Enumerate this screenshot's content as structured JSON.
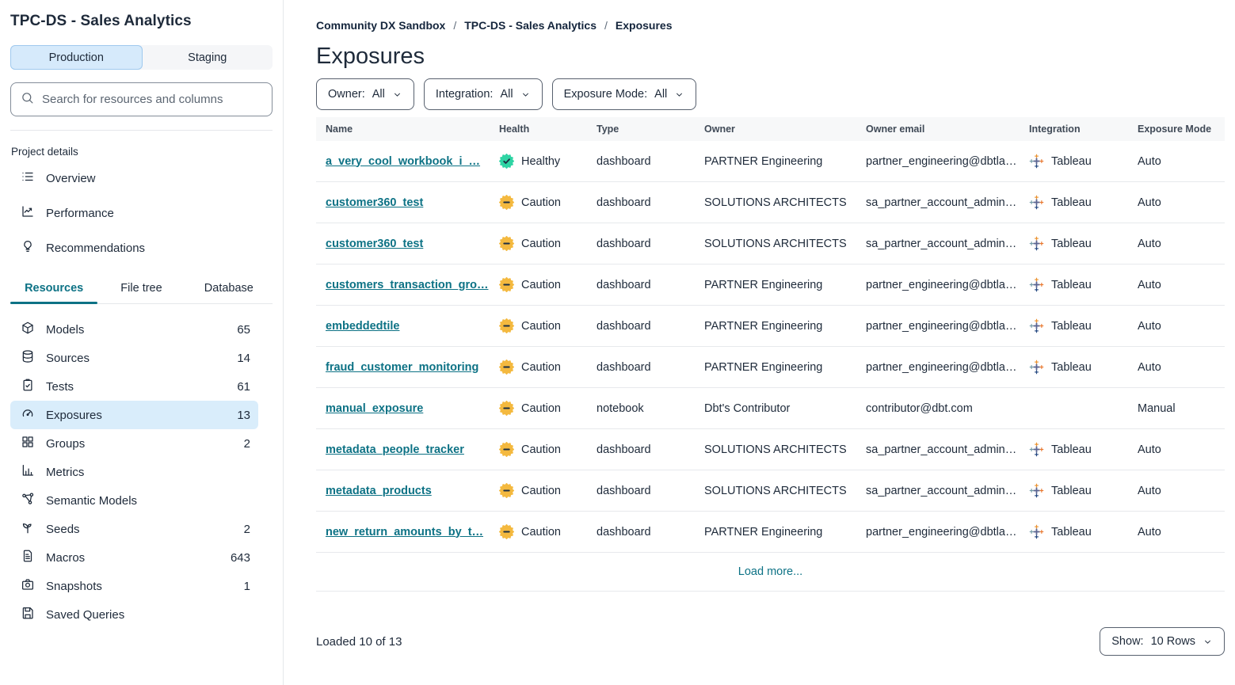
{
  "colors": {
    "accent_teal": "#0d7285",
    "selected_blue": "#d9edfb",
    "production_blue": "#d6eafb",
    "healthy_green": "#2fd4a4",
    "caution_amber": "#f4b93f",
    "badge_glyph": "#1d2f43"
  },
  "sidebar": {
    "project_title": "TPC-DS - Sales Analytics",
    "environment_toggle": {
      "production": "Production",
      "staging": "Staging",
      "active": "Production"
    },
    "search": {
      "placeholder": "Search for resources and columns"
    },
    "project_details_label": "Project details",
    "menu": [
      {
        "label": "Overview",
        "icon": "list"
      },
      {
        "label": "Performance",
        "icon": "trend"
      },
      {
        "label": "Recommendations",
        "icon": "lightbulb"
      }
    ],
    "tabs": [
      {
        "label": "Resources",
        "active": true
      },
      {
        "label": "File tree",
        "active": false
      },
      {
        "label": "Database",
        "active": false
      }
    ],
    "resources": [
      {
        "label": "Models",
        "count": "65",
        "icon": "cube",
        "selected": false
      },
      {
        "label": "Sources",
        "count": "14",
        "icon": "database",
        "selected": false
      },
      {
        "label": "Tests",
        "count": "61",
        "icon": "clipboard",
        "selected": false
      },
      {
        "label": "Exposures",
        "count": "13",
        "icon": "gauge",
        "selected": true
      },
      {
        "label": "Groups",
        "count": "2",
        "icon": "grid",
        "selected": false
      },
      {
        "label": "Metrics",
        "count": "",
        "icon": "chart",
        "selected": false
      },
      {
        "label": "Semantic Models",
        "count": "",
        "icon": "network",
        "selected": false
      },
      {
        "label": "Seeds",
        "count": "2",
        "icon": "seedling",
        "selected": false
      },
      {
        "label": "Macros",
        "count": "643",
        "icon": "file",
        "selected": false
      },
      {
        "label": "Snapshots",
        "count": "1",
        "icon": "camera",
        "selected": false
      },
      {
        "label": "Saved Queries",
        "count": "",
        "icon": "save",
        "selected": false
      }
    ]
  },
  "main": {
    "breadcrumb": [
      {
        "label": "Community DX Sandbox"
      },
      {
        "label": "TPC-DS - Sales Analytics"
      },
      {
        "label": "Exposures"
      }
    ],
    "page_title": "Exposures",
    "filters": [
      {
        "label": "Owner:",
        "value": "All"
      },
      {
        "label": "Integration:",
        "value": "All"
      },
      {
        "label": "Exposure Mode:",
        "value": "All"
      }
    ],
    "table": {
      "columns": [
        "Name",
        "Health",
        "Type",
        "Owner",
        "Owner email",
        "Integration",
        "Exposure Mode"
      ],
      "rows": [
        {
          "name": "a_very_cool_workbook_i_…",
          "health": "Healthy",
          "health_status": "healthy",
          "type": "dashboard",
          "owner": "PARTNER Engineering",
          "owner_email": "partner_engineering@dbtla…",
          "integration": "Tableau",
          "exposure_mode": "Auto"
        },
        {
          "name": "customer360_test",
          "health": "Caution",
          "health_status": "caution",
          "type": "dashboard",
          "owner": "SOLUTIONS ARCHITECTS",
          "owner_email": "sa_partner_account_admin…",
          "integration": "Tableau",
          "exposure_mode": "Auto"
        },
        {
          "name": "customer360_test",
          "health": "Caution",
          "health_status": "caution",
          "type": "dashboard",
          "owner": "SOLUTIONS ARCHITECTS",
          "owner_email": "sa_partner_account_admin…",
          "integration": "Tableau",
          "exposure_mode": "Auto"
        },
        {
          "name": "customers_transaction_gro…",
          "health": "Caution",
          "health_status": "caution",
          "type": "dashboard",
          "owner": "PARTNER Engineering",
          "owner_email": "partner_engineering@dbtla…",
          "integration": "Tableau",
          "exposure_mode": "Auto"
        },
        {
          "name": "embeddedtile",
          "health": "Caution",
          "health_status": "caution",
          "type": "dashboard",
          "owner": "PARTNER Engineering",
          "owner_email": "partner_engineering@dbtla…",
          "integration": "Tableau",
          "exposure_mode": "Auto"
        },
        {
          "name": "fraud_customer_monitoring",
          "health": "Caution",
          "health_status": "caution",
          "type": "dashboard",
          "owner": "PARTNER Engineering",
          "owner_email": "partner_engineering@dbtla…",
          "integration": "Tableau",
          "exposure_mode": "Auto"
        },
        {
          "name": "manual_exposure",
          "health": "Caution",
          "health_status": "caution",
          "type": "notebook",
          "owner": "Dbt's Contributor",
          "owner_email": "contributor@dbt.com",
          "integration": "",
          "exposure_mode": "Manual"
        },
        {
          "name": "metadata_people_tracker",
          "health": "Caution",
          "health_status": "caution",
          "type": "dashboard",
          "owner": "SOLUTIONS ARCHITECTS",
          "owner_email": "sa_partner_account_admin…",
          "integration": "Tableau",
          "exposure_mode": "Auto"
        },
        {
          "name": "metadata_products",
          "health": "Caution",
          "health_status": "caution",
          "type": "dashboard",
          "owner": "SOLUTIONS ARCHITECTS",
          "owner_email": "sa_partner_account_admin…",
          "integration": "Tableau",
          "exposure_mode": "Auto"
        },
        {
          "name": "new_return_amounts_by_t…",
          "health": "Caution",
          "health_status": "caution",
          "type": "dashboard",
          "owner": "PARTNER Engineering",
          "owner_email": "partner_engineering@dbtla…",
          "integration": "Tableau",
          "exposure_mode": "Auto"
        }
      ],
      "load_more_label": "Load more..."
    },
    "footer": {
      "loaded_text": "Loaded 10 of 13",
      "show_label": "Show:",
      "show_value": "10 Rows"
    }
  }
}
